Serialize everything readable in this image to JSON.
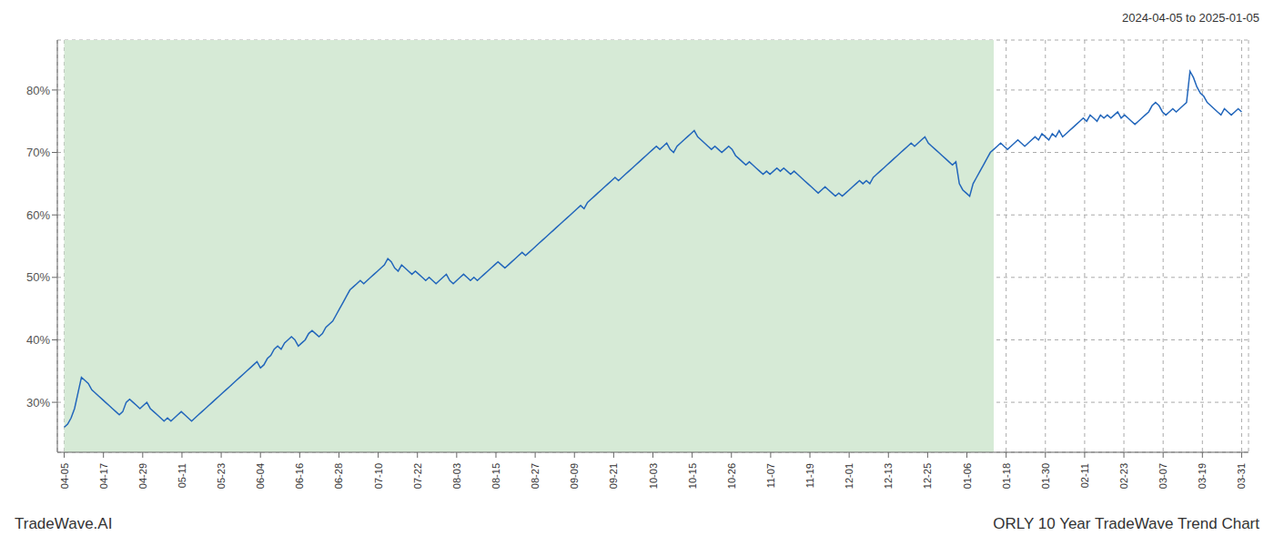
{
  "chart_data": {
    "type": "line",
    "title": "ORLY 10 Year TradeWave Trend Chart",
    "subtitle": "2024-04-05 to 2025-01-05",
    "annotations": [
      "TradeWave.AI"
    ],
    "color": "#2266bb",
    "grid": true,
    "xlim": [
      -2,
      344
    ],
    "xticks": [
      {
        "value": 0,
        "label": "04-05"
      },
      {
        "value": 11.4,
        "label": "04-17"
      },
      {
        "value": 22.8,
        "label": "04-29"
      },
      {
        "value": 34.2,
        "label": "05-11"
      },
      {
        "value": 45.6,
        "label": "05-23"
      },
      {
        "value": 57,
        "label": "06-04"
      },
      {
        "value": 68.4,
        "label": "06-16"
      },
      {
        "value": 79.8,
        "label": "06-28"
      },
      {
        "value": 91.2,
        "label": "07-10"
      },
      {
        "value": 102.6,
        "label": "07-22"
      },
      {
        "value": 114,
        "label": "08-03"
      },
      {
        "value": 125.4,
        "label": "08-15"
      },
      {
        "value": 136.8,
        "label": "08-27"
      },
      {
        "value": 148.2,
        "label": "09-09"
      },
      {
        "value": 159.6,
        "label": "09-21"
      },
      {
        "value": 171,
        "label": "10-03"
      },
      {
        "value": 182.4,
        "label": "10-15"
      },
      {
        "value": 193.8,
        "label": "10-26"
      },
      {
        "value": 205.2,
        "label": "11-07"
      },
      {
        "value": 216.6,
        "label": "11-19"
      },
      {
        "value": 228,
        "label": "12-01"
      },
      {
        "value": 239.4,
        "label": "12-13"
      },
      {
        "value": 250.8,
        "label": "12-25"
      },
      {
        "value": 262.2,
        "label": "01-06"
      },
      {
        "value": 273.6,
        "label": "01-18"
      },
      {
        "value": 285,
        "label": "01-30"
      },
      {
        "value": 296.4,
        "label": "02-11"
      },
      {
        "value": 307.8,
        "label": "02-23"
      },
      {
        "value": 319.2,
        "label": "03-07"
      },
      {
        "value": 330.6,
        "label": "03-19"
      },
      {
        "value": 342,
        "label": "03-31"
      }
    ],
    "ylim": [
      22,
      88
    ],
    "yticks": [
      {
        "value": 30,
        "label": "30%"
      },
      {
        "value": 40,
        "label": "40%"
      },
      {
        "value": 50,
        "label": "50%"
      },
      {
        "value": 60,
        "label": "60%"
      },
      {
        "value": 70,
        "label": "70%"
      },
      {
        "value": 80,
        "label": "80%"
      }
    ],
    "shaded_region": {
      "x_start": 0,
      "x_end": 270,
      "color": "#d6ead6"
    },
    "values": [
      26.0,
      26.5,
      27.5,
      29.0,
      31.5,
      34.0,
      33.5,
      33.0,
      32.0,
      31.5,
      31.0,
      30.5,
      30.0,
      29.5,
      29.0,
      28.5,
      28.0,
      28.5,
      30.0,
      30.5,
      30.0,
      29.5,
      29.0,
      29.5,
      30.0,
      29.0,
      28.5,
      28.0,
      27.5,
      27.0,
      27.5,
      27.0,
      27.5,
      28.0,
      28.5,
      28.0,
      27.5,
      27.0,
      27.5,
      28.0,
      28.5,
      29.0,
      29.5,
      30.0,
      30.5,
      31.0,
      31.5,
      32.0,
      32.5,
      33.0,
      33.5,
      34.0,
      34.5,
      35.0,
      35.5,
      36.0,
      36.5,
      35.5,
      36.0,
      37.0,
      37.5,
      38.5,
      39.0,
      38.5,
      39.5,
      40.0,
      40.5,
      40.0,
      39.0,
      39.5,
      40.0,
      41.0,
      41.5,
      41.0,
      40.5,
      41.0,
      42.0,
      42.5,
      43.0,
      44.0,
      45.0,
      46.0,
      47.0,
      48.0,
      48.5,
      49.0,
      49.5,
      49.0,
      49.5,
      50.0,
      50.5,
      51.0,
      51.5,
      52.0,
      53.0,
      52.5,
      51.5,
      51.0,
      52.0,
      51.5,
      51.0,
      50.5,
      51.0,
      50.5,
      50.0,
      49.5,
      50.0,
      49.5,
      49.0,
      49.5,
      50.0,
      50.5,
      49.5,
      49.0,
      49.5,
      50.0,
      50.5,
      50.0,
      49.5,
      50.0,
      49.5,
      50.0,
      50.5,
      51.0,
      51.5,
      52.0,
      52.5,
      52.0,
      51.5,
      52.0,
      52.5,
      53.0,
      53.5,
      54.0,
      53.5,
      54.0,
      54.5,
      55.0,
      55.5,
      56.0,
      56.5,
      57.0,
      57.5,
      58.0,
      58.5,
      59.0,
      59.5,
      60.0,
      60.5,
      61.0,
      61.5,
      61.0,
      62.0,
      62.5,
      63.0,
      63.5,
      64.0,
      64.5,
      65.0,
      65.5,
      66.0,
      65.5,
      66.0,
      66.5,
      67.0,
      67.5,
      68.0,
      68.5,
      69.0,
      69.5,
      70.0,
      70.5,
      71.0,
      70.5,
      71.0,
      71.5,
      70.5,
      70.0,
      71.0,
      71.5,
      72.0,
      72.5,
      73.0,
      73.5,
      72.5,
      72.0,
      71.5,
      71.0,
      70.5,
      71.0,
      70.5,
      70.0,
      70.5,
      71.0,
      70.5,
      69.5,
      69.0,
      68.5,
      68.0,
      68.5,
      68.0,
      67.5,
      67.0,
      66.5,
      67.0,
      66.5,
      67.0,
      67.5,
      67.0,
      67.5,
      67.0,
      66.5,
      67.0,
      66.5,
      66.0,
      65.5,
      65.0,
      64.5,
      64.0,
      63.5,
      64.0,
      64.5,
      64.0,
      63.5,
      63.0,
      63.5,
      63.0,
      63.5,
      64.0,
      64.5,
      65.0,
      65.5,
      65.0,
      65.5,
      65.0,
      66.0,
      66.5,
      67.0,
      67.5,
      68.0,
      68.5,
      69.0,
      69.5,
      70.0,
      70.5,
      71.0,
      71.5,
      71.0,
      71.5,
      72.0,
      72.5,
      71.5,
      71.0,
      70.5,
      70.0,
      69.5,
      69.0,
      68.5,
      68.0,
      68.5,
      65.0,
      64.0,
      63.5,
      63.0,
      65.0,
      66.0,
      67.0,
      68.0,
      69.0,
      70.0,
      70.5,
      71.0,
      71.5,
      71.0,
      70.5,
      71.0,
      71.5,
      72.0,
      71.5,
      71.0,
      71.5,
      72.0,
      72.5,
      72.0,
      73.0,
      72.5,
      72.0,
      73.0,
      72.5,
      73.5,
      72.5,
      73.0,
      73.5,
      74.0,
      74.5,
      75.0,
      75.5,
      75.0,
      76.0,
      75.5,
      75.0,
      76.0,
      75.5,
      76.0,
      75.5,
      76.0,
      76.5,
      75.5,
      76.0,
      75.5,
      75.0,
      74.5,
      75.0,
      75.5,
      76.0,
      76.5,
      77.5,
      78.0,
      77.5,
      76.5,
      76.0,
      76.5,
      77.0,
      76.5,
      77.0,
      77.5,
      78.0,
      83.0,
      82.0,
      80.5,
      79.5,
      79.0,
      78.0,
      77.5,
      77.0,
      76.5,
      76.0,
      77.0,
      76.5,
      76.0,
      76.5,
      77.0,
      76.5
    ]
  }
}
